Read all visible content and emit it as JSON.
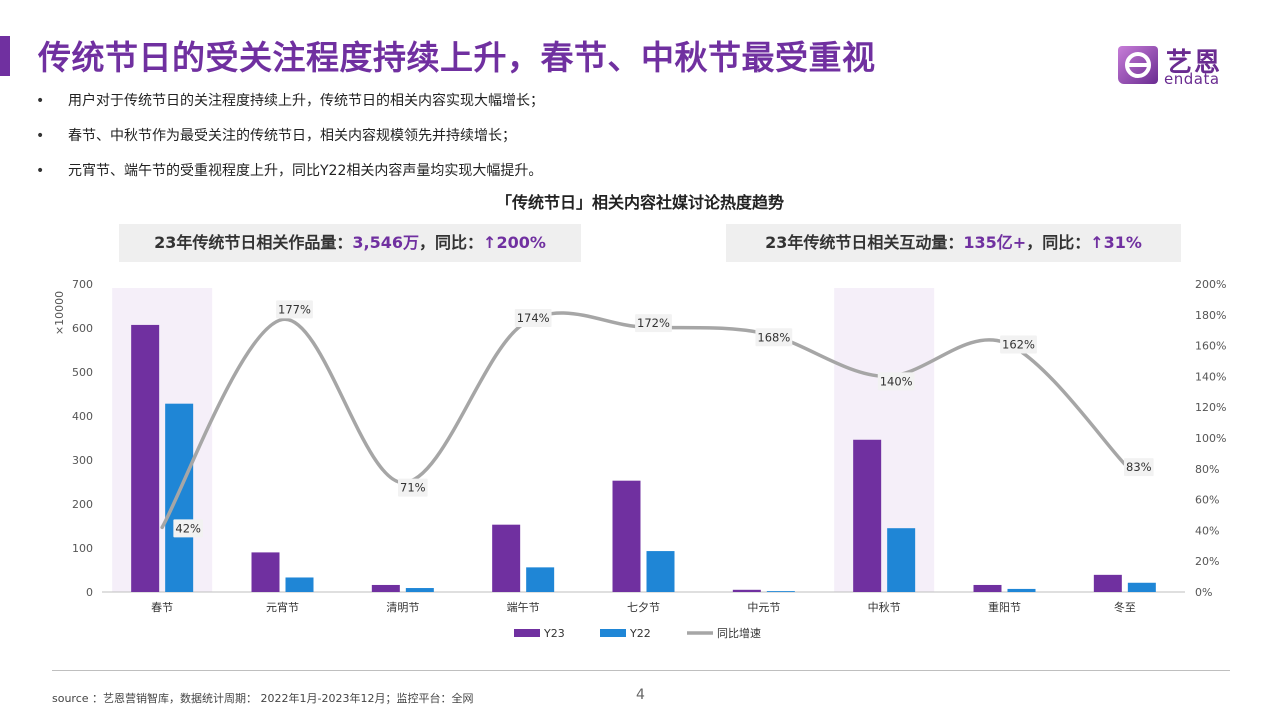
{
  "header": {
    "title": "传统节日的受关注程度持续上升，春节、中秋节最受重视",
    "logo_cn": "艺恩",
    "logo_en": "endata",
    "brand_color": "#7030a0"
  },
  "bullets": [
    "用户对于传统节日的关注程度持续上升，传统节日的相关内容实现大幅增长；",
    "春节、中秋节作为最受关注的传统节日，相关内容规模领先并持续增长；",
    "元宵节、端午节的受重视程度上升，同比Y22相关内容声量均实现大幅提升。"
  ],
  "kpi_left": {
    "label": "23年传统节日相关作品量：",
    "value": "3,546万",
    "mid": "，同比：",
    "growth": "↑200%"
  },
  "kpi_right": {
    "label": "23年传统节日相关互动量：",
    "value": "135亿+",
    "mid": "，同比：",
    "growth": "↑31%"
  },
  "chart_data": {
    "type": "bar",
    "title": "「传统节日」相关内容社媒讨论热度趋势",
    "y_unit_label": "×10000",
    "categories": [
      "春节",
      "元宵节",
      "清明节",
      "端午节",
      "七夕节",
      "中元节",
      "中秋节",
      "重阳节",
      "冬至"
    ],
    "highlight_categories": [
      "春节",
      "中秋节"
    ],
    "ylim": [
      0,
      700
    ],
    "yticks": [
      "0",
      "100",
      "200",
      "300",
      "400",
      "500",
      "600",
      "700"
    ],
    "y2lim": [
      0,
      200
    ],
    "y2ticks": [
      "0%",
      "20%",
      "40%",
      "60%",
      "80%",
      "100%",
      "120%",
      "140%",
      "160%",
      "180%",
      "200%"
    ],
    "series": [
      {
        "name": "Y23",
        "type": "bar",
        "color": "#7030a0",
        "values": [
          607,
          90,
          16,
          153,
          253,
          5,
          346,
          16,
          39
        ]
      },
      {
        "name": "Y22",
        "type": "bar",
        "color": "#1f86d6",
        "values": [
          428,
          33,
          9,
          56,
          93,
          2,
          145,
          7,
          21
        ]
      },
      {
        "name": "同比增速",
        "type": "line",
        "color": "#a6a6a6",
        "values": [
          42,
          177,
          71,
          174,
          172,
          168,
          140,
          162,
          83
        ],
        "labels": [
          "42%",
          "177%",
          "71%",
          "174%",
          "172%",
          "168%",
          "140%",
          "162%",
          "83%"
        ]
      }
    ],
    "legend_position": "bottom",
    "grid": false
  },
  "footer": {
    "source": "source ：艺恩营销智库，数据统计周期： 2022年1月-2023年12月；监控平台：全网",
    "page_number": "4"
  }
}
